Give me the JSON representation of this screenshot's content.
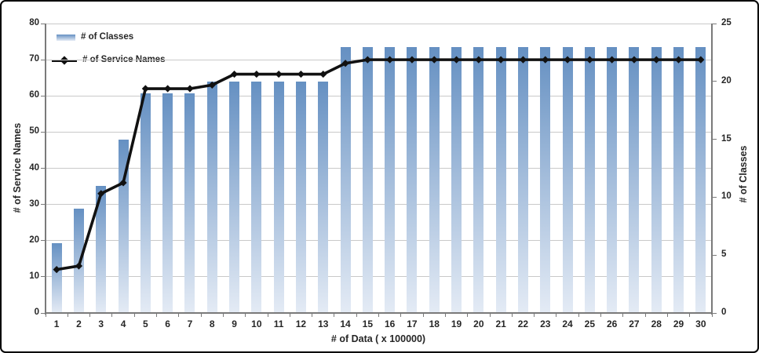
{
  "chart_data": {
    "type": "combo-bar-line",
    "x_categories": [
      1,
      2,
      3,
      4,
      5,
      6,
      7,
      8,
      9,
      10,
      11,
      12,
      13,
      14,
      15,
      16,
      17,
      18,
      19,
      20,
      21,
      22,
      23,
      24,
      25,
      26,
      27,
      28,
      29,
      30
    ],
    "series": [
      {
        "name": "# of Classes",
        "type": "bar",
        "axis": "right",
        "values": [
          6,
          9,
          11,
          15,
          19,
          19,
          19,
          20,
          20,
          20,
          20,
          20,
          20,
          23,
          23,
          23,
          23,
          23,
          23,
          23,
          23,
          23,
          23,
          23,
          23,
          23,
          23,
          23,
          23,
          23
        ]
      },
      {
        "name": "# of Service Names",
        "type": "line",
        "axis": "left",
        "marker": "diamond",
        "values": [
          12,
          13,
          33,
          36,
          62,
          62,
          62,
          63,
          66,
          66,
          66,
          66,
          66,
          69,
          70,
          70,
          70,
          70,
          70,
          70,
          70,
          70,
          70,
          70,
          70,
          70,
          70,
          70,
          70,
          70
        ]
      }
    ],
    "left_axis": {
      "title": "# of Service Names",
      "min": 0,
      "max": 80,
      "step": 10
    },
    "right_axis": {
      "title": "# of Classes",
      "min": 0,
      "max": 25,
      "step": 5
    },
    "x_axis": {
      "title": "# of Data ( x 100000)"
    },
    "grid": true,
    "legend_position": "top-left-inside"
  },
  "colors": {
    "background": "#ffffff",
    "outer_border": "#000000",
    "gridline": "#c9c9c9",
    "axis_line": "#7a7a7a",
    "text": "#262626",
    "bar_top": "#6590c2",
    "bar_bottom": "#e4ebf5",
    "line_series": "#111111"
  }
}
